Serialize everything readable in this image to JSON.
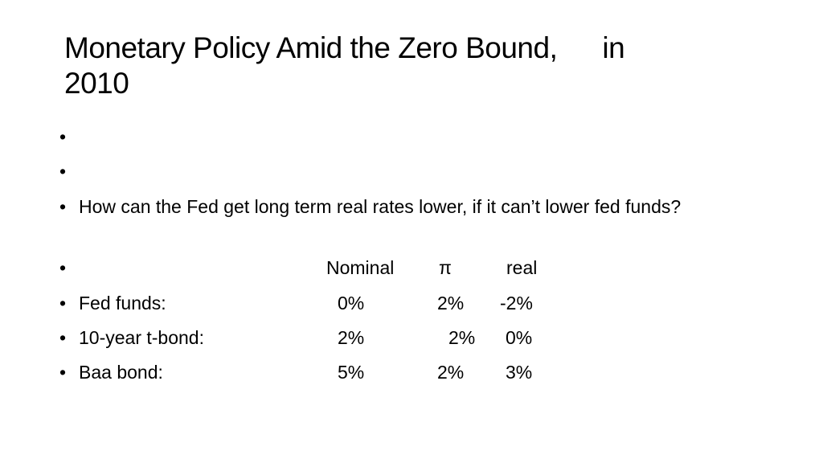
{
  "slide": {
    "title": {
      "line1_a": "Monetary Policy Amid the Zero Bound,",
      "line1_b": "in",
      "line2": "2010"
    },
    "bullet_glyph": "•",
    "question": "How can the Fed get long term real rates lower, if it can’t lower fed funds?",
    "table": {
      "headers": {
        "nominal": "Nominal",
        "pi": "π",
        "real": "real"
      },
      "rows": [
        {
          "label": "Fed funds:",
          "nominal": "0%",
          "pi": "2%",
          "real": "-2%"
        },
        {
          "label": "10-year t-bond:",
          "nominal": "2%",
          "pi": "2%",
          "real": "0%"
        },
        {
          "label": "Baa bond:",
          "nominal": "5%",
          "pi": "2%",
          "real": "3%"
        }
      ]
    }
  }
}
